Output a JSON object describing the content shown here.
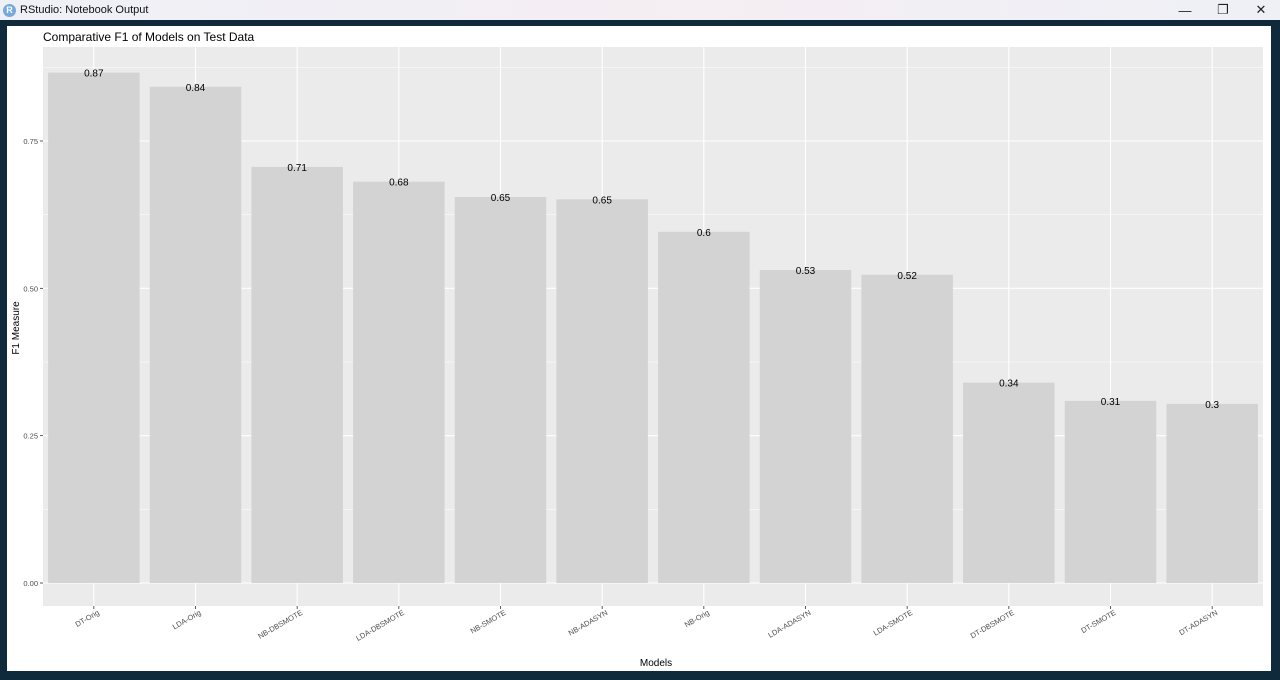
{
  "window": {
    "title": "RStudio: Notebook Output",
    "controls": {
      "minimize": "—",
      "restore": "❐",
      "close": "✕"
    }
  },
  "colors": {
    "panel": "#ebebeb",
    "grid": "#ffffff",
    "bar": "#d3d3d3",
    "text": "#000000",
    "tick_text": "#4d4d4d"
  },
  "chart_data": {
    "type": "bar",
    "title": "Comparative F1 of Models on Test Data",
    "xlabel": "Models",
    "ylabel": "F1 Measure",
    "ylim": [
      0,
      0.9
    ],
    "yticks": [
      0.0,
      0.25,
      0.5,
      0.75
    ],
    "ytick_labels": [
      "0.00",
      "0.25",
      "0.50",
      "0.75"
    ],
    "grid": true,
    "categories": [
      "DT-Orig",
      "LDA-Orig",
      "NB-DBSMOTE",
      "LDA-DBSMOTE",
      "NB-SMOTE",
      "NB-ADASYN",
      "NB-Orig",
      "LDA-ADASYN",
      "LDA-SMOTE",
      "DT-DBSMOTE",
      "DT-SMOTE",
      "DT-ADASYN"
    ],
    "values": [
      0.866,
      0.842,
      0.706,
      0.681,
      0.655,
      0.651,
      0.596,
      0.531,
      0.523,
      0.34,
      0.309,
      0.304
    ],
    "data_labels": [
      "0.87",
      "0.84",
      "0.71",
      "0.68",
      "0.65",
      "0.65",
      "0.6",
      "0.53",
      "0.52",
      "0.34",
      "0.31",
      "0.3"
    ]
  }
}
